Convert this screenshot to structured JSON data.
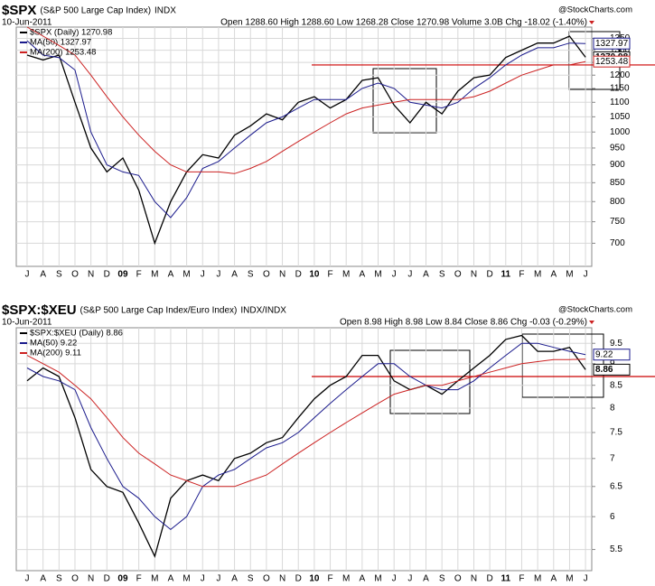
{
  "chart_data": [
    {
      "type": "line",
      "title": "$SPX",
      "subtitle": "(S&P 500 Large Cap Index)",
      "exchange": "INDX",
      "date": "10-Jun-2011",
      "quote": "Open 1288.60  High 1288.60  Low 1268.28  Close 1270.98  Volume 3.0B  Chg -18.02 (-1.40%)",
      "credit": "@StockCharts.com",
      "categories": [
        "J",
        "A",
        "S",
        "O",
        "N",
        "D",
        "09",
        "F",
        "M",
        "A",
        "M",
        "J",
        "J",
        "A",
        "S",
        "O",
        "N",
        "D",
        "10",
        "F",
        "M",
        "A",
        "M",
        "J",
        "J",
        "A",
        "S",
        "O",
        "N",
        "D",
        "11",
        "F",
        "M",
        "A",
        "M",
        "J"
      ],
      "log_scale": true,
      "grid": true,
      "ylim": [
        650,
        1400
      ],
      "yticks": [
        700,
        750,
        800,
        850,
        900,
        950,
        1000,
        1050,
        1100,
        1150,
        1200,
        1250,
        1300,
        1350
      ],
      "reference_line": 1240,
      "series": [
        {
          "name": "$SPX (Daily) 1270.98",
          "color": "#000000",
          "tag": "1270.98",
          "values": [
            1280,
            1260,
            1280,
            1100,
            950,
            880,
            920,
            830,
            700,
            800,
            880,
            930,
            920,
            990,
            1020,
            1060,
            1040,
            1100,
            1120,
            1080,
            1110,
            1180,
            1190,
            1090,
            1030,
            1100,
            1060,
            1140,
            1190,
            1200,
            1270,
            1300,
            1330,
            1330,
            1360,
            1270.98
          ]
        },
        {
          "name": "MA(50) 1327.97",
          "color": "#1a1a8c",
          "tag": "1327.97",
          "values": [
            1340,
            1280,
            1270,
            1220,
            1000,
            900,
            880,
            870,
            800,
            760,
            810,
            890,
            910,
            950,
            990,
            1030,
            1050,
            1080,
            1110,
            1110,
            1110,
            1150,
            1170,
            1150,
            1100,
            1090,
            1080,
            1100,
            1150,
            1190,
            1240,
            1280,
            1310,
            1310,
            1330,
            1327.97
          ]
        },
        {
          "name": "MA(200) 1253.48",
          "color": "#cc2222",
          "tag": "1253.48",
          "values": [
            1400,
            1360,
            1320,
            1280,
            1200,
            1120,
            1050,
            990,
            940,
            900,
            880,
            880,
            880,
            875,
            890,
            910,
            940,
            970,
            1000,
            1030,
            1060,
            1080,
            1090,
            1100,
            1110,
            1110,
            1110,
            1110,
            1120,
            1140,
            1170,
            1200,
            1220,
            1240,
            1240,
            1253.48
          ]
        }
      ]
    },
    {
      "type": "line",
      "title": "$SPX:$XEU",
      "subtitle": "(S&P 500 Large Cap Index/Euro Index)",
      "exchange": "INDX/INDX",
      "date": "10-Jun-2011",
      "quote": "Open 8.98  High 8.98  Low 8.84  Close 8.86  Chg -0.03 (-0.29%)",
      "credit": "@StockCharts.com",
      "categories": [
        "J",
        "A",
        "S",
        "O",
        "N",
        "D",
        "09",
        "F",
        "M",
        "A",
        "M",
        "J",
        "J",
        "A",
        "S",
        "O",
        "N",
        "D",
        "10",
        "F",
        "M",
        "A",
        "M",
        "J",
        "J",
        "A",
        "S",
        "O",
        "N",
        "D",
        "11",
        "F",
        "M",
        "A",
        "M",
        "J"
      ],
      "log_scale": true,
      "grid": true,
      "ylim": [
        5.2,
        9.9
      ],
      "yticks": [
        5.5,
        6.0,
        6.5,
        7.0,
        7.5,
        8.0,
        8.5,
        9.0,
        9.5
      ],
      "reference_line": 8.7,
      "series": [
        {
          "name": "$SPX:$XEU (Daily) 8.86",
          "color": "#000000",
          "tag": "8.86",
          "values": [
            8.6,
            8.9,
            8.7,
            7.8,
            6.8,
            6.5,
            6.4,
            5.9,
            5.4,
            6.3,
            6.6,
            6.7,
            6.6,
            7.0,
            7.1,
            7.3,
            7.4,
            7.8,
            8.2,
            8.5,
            8.7,
            9.2,
            9.2,
            8.6,
            8.4,
            8.5,
            8.3,
            8.6,
            8.9,
            9.2,
            9.6,
            9.7,
            9.3,
            9.3,
            9.4,
            8.86
          ]
        },
        {
          "name": "MA(50) 9.22",
          "color": "#1a1a8c",
          "tag": "9.22",
          "values": [
            8.9,
            8.7,
            8.6,
            8.4,
            7.6,
            7.0,
            6.5,
            6.3,
            6.0,
            5.8,
            6.0,
            6.5,
            6.7,
            6.8,
            7.0,
            7.2,
            7.3,
            7.5,
            7.8,
            8.1,
            8.4,
            8.7,
            9.0,
            9.0,
            8.7,
            8.5,
            8.4,
            8.4,
            8.6,
            8.9,
            9.2,
            9.5,
            9.5,
            9.4,
            9.3,
            9.22
          ]
        },
        {
          "name": "MA(200) 9.11",
          "color": "#cc2222",
          "values": [
            9.2,
            9.0,
            8.8,
            8.5,
            8.2,
            7.8,
            7.4,
            7.1,
            6.9,
            6.7,
            6.6,
            6.5,
            6.5,
            6.5,
            6.6,
            6.7,
            6.9,
            7.1,
            7.3,
            7.5,
            7.7,
            7.9,
            8.1,
            8.3,
            8.4,
            8.5,
            8.5,
            8.6,
            8.7,
            8.8,
            8.9,
            9.0,
            9.05,
            9.1,
            9.1,
            9.11
          ]
        }
      ]
    }
  ]
}
